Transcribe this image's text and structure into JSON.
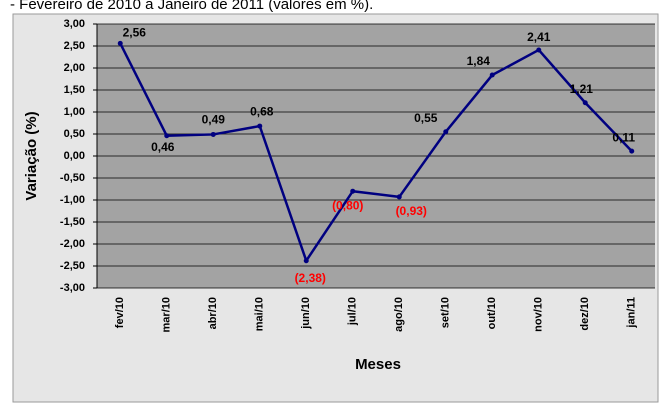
{
  "chart_data": {
    "type": "line",
    "title": "- Fevereiro de 2010 a Janeiro de 2011 (valores em %).",
    "x_label": "Meses",
    "y_label": "Variação (%)",
    "categories": [
      "fev/10",
      "mar/10",
      "abr/10",
      "mai/10",
      "jun/10",
      "jul/10",
      "ago/10",
      "set/10",
      "out/10",
      "nov/10",
      "dez/10",
      "jan/11"
    ],
    "values": [
      2.56,
      0.46,
      0.49,
      0.68,
      -2.38,
      -0.8,
      -0.93,
      0.55,
      1.84,
      2.41,
      1.21,
      0.11
    ],
    "value_labels": [
      "2,56",
      "0,46",
      "0,49",
      "0,68",
      "(2,38)",
      "(0,80)",
      "(0,93)",
      "0,55",
      "1,84",
      "2,41",
      "1,21",
      "0,11"
    ],
    "color": "#000080",
    "negative_label_color": "#ff0000",
    "ylim": [
      -3,
      3
    ],
    "yticks": [
      {
        "value": -3,
        "label": "-3,00"
      },
      {
        "value": -2.5,
        "label": "-2,50"
      },
      {
        "value": -2,
        "label": "-2,00"
      },
      {
        "value": -1.5,
        "label": "-1,50"
      },
      {
        "value": -1,
        "label": "-1,00"
      },
      {
        "value": -0.5,
        "label": "-0,50"
      },
      {
        "value": 0,
        "label": "0,00"
      },
      {
        "value": 0.5,
        "label": "0,50"
      },
      {
        "value": 1,
        "label": "1,00"
      },
      {
        "value": 1.5,
        "label": "1,50"
      },
      {
        "value": 2,
        "label": "2,00"
      },
      {
        "value": 2.5,
        "label": "2,50"
      },
      {
        "value": 3,
        "label": "3,00"
      }
    ],
    "grid": true
  }
}
